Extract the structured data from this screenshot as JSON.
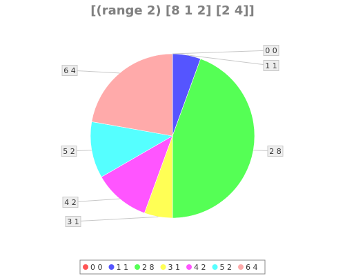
{
  "chart_data": {
    "type": "pie",
    "title": "[(range 2) [8 1 2] [2 4]]",
    "slices": [
      {
        "label": "0 0",
        "value": 0,
        "color": "#ff5555"
      },
      {
        "label": "1 1",
        "value": 1,
        "color": "#5555ff"
      },
      {
        "label": "2 8",
        "value": 8,
        "color": "#55ff55"
      },
      {
        "label": "3 1",
        "value": 1,
        "color": "#ffff55"
      },
      {
        "label": "4 2",
        "value": 2,
        "color": "#ff55ff"
      },
      {
        "label": "5 2",
        "value": 2,
        "color": "#55ffff"
      },
      {
        "label": "6 4",
        "value": 4,
        "color": "#ffaaaa"
      }
    ],
    "legend_position": "bottom"
  }
}
